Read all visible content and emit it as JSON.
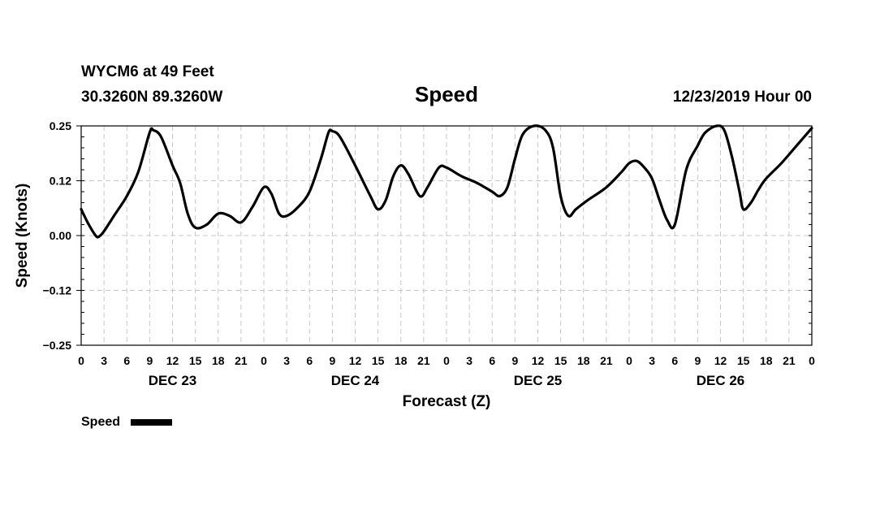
{
  "chart_data": {
    "type": "line",
    "station_line": "WYCM6 at 49 Feet",
    "coords_line": "30.3260N 89.3260W",
    "title": "Speed",
    "datetime_label": "12/23/2019 Hour 00",
    "xlabel": "Forecast (Z)",
    "ylabel": "Speed (Knots)",
    "ylim": [
      -0.25,
      0.25
    ],
    "xlim_hours": [
      0,
      96
    ],
    "yticks": [
      {
        "value": 0.25,
        "label": "0.25"
      },
      {
        "value": 0.125,
        "label": "0.12"
      },
      {
        "value": 0.0,
        "label": "0.00"
      },
      {
        "value": -0.125,
        "label": "−0.12"
      },
      {
        "value": -0.25,
        "label": "−0.25"
      }
    ],
    "xticks": [
      {
        "hour": 0,
        "label": "0"
      },
      {
        "hour": 3,
        "label": "3"
      },
      {
        "hour": 6,
        "label": "6"
      },
      {
        "hour": 9,
        "label": "9"
      },
      {
        "hour": 12,
        "label": "12"
      },
      {
        "hour": 15,
        "label": "15"
      },
      {
        "hour": 18,
        "label": "18"
      },
      {
        "hour": 21,
        "label": "21"
      },
      {
        "hour": 24,
        "label": "0"
      },
      {
        "hour": 27,
        "label": "3"
      },
      {
        "hour": 30,
        "label": "6"
      },
      {
        "hour": 33,
        "label": "9"
      },
      {
        "hour": 36,
        "label": "12"
      },
      {
        "hour": 39,
        "label": "15"
      },
      {
        "hour": 42,
        "label": "18"
      },
      {
        "hour": 45,
        "label": "21"
      },
      {
        "hour": 48,
        "label": "0"
      },
      {
        "hour": 51,
        "label": "3"
      },
      {
        "hour": 54,
        "label": "6"
      },
      {
        "hour": 57,
        "label": "9"
      },
      {
        "hour": 60,
        "label": "12"
      },
      {
        "hour": 63,
        "label": "15"
      },
      {
        "hour": 66,
        "label": "18"
      },
      {
        "hour": 69,
        "label": "21"
      },
      {
        "hour": 72,
        "label": "0"
      },
      {
        "hour": 75,
        "label": "3"
      },
      {
        "hour": 78,
        "label": "6"
      },
      {
        "hour": 81,
        "label": "9"
      },
      {
        "hour": 84,
        "label": "12"
      },
      {
        "hour": 87,
        "label": "15"
      },
      {
        "hour": 90,
        "label": "18"
      },
      {
        "hour": 93,
        "label": "21"
      },
      {
        "hour": 96,
        "label": "0"
      }
    ],
    "day_labels": [
      {
        "hour": 12,
        "label": "DEC 23"
      },
      {
        "hour": 36,
        "label": "DEC 24"
      },
      {
        "hour": 60,
        "label": "DEC 25"
      },
      {
        "hour": 84,
        "label": "DEC 26"
      }
    ],
    "grid": true,
    "legend": {
      "label": "Speed",
      "placement": "bottom-left"
    },
    "series": [
      {
        "name": "Speed",
        "color": "#000000",
        "points": [
          [
            0,
            0.06
          ],
          [
            1,
            0.025
          ],
          [
            2,
            -0.002
          ],
          [
            2.5,
            0.0
          ],
          [
            3,
            0.01
          ],
          [
            4.5,
            0.05
          ],
          [
            6,
            0.09
          ],
          [
            7.5,
            0.145
          ],
          [
            9,
            0.235
          ],
          [
            9.5,
            0.24
          ],
          [
            10.5,
            0.225
          ],
          [
            12,
            0.16
          ],
          [
            13,
            0.12
          ],
          [
            14,
            0.05
          ],
          [
            15,
            0.018
          ],
          [
            16.5,
            0.025
          ],
          [
            18,
            0.05
          ],
          [
            19.5,
            0.045
          ],
          [
            21,
            0.03
          ],
          [
            22.5,
            0.065
          ],
          [
            24,
            0.11
          ],
          [
            25,
            0.095
          ],
          [
            26,
            0.05
          ],
          [
            27,
            0.045
          ],
          [
            28.5,
            0.065
          ],
          [
            30,
            0.1
          ],
          [
            31.5,
            0.175
          ],
          [
            32.5,
            0.235
          ],
          [
            33,
            0.238
          ],
          [
            34,
            0.225
          ],
          [
            36,
            0.16
          ],
          [
            38,
            0.09
          ],
          [
            39,
            0.06
          ],
          [
            40,
            0.08
          ],
          [
            41,
            0.135
          ],
          [
            42,
            0.16
          ],
          [
            43,
            0.14
          ],
          [
            44.5,
            0.09
          ],
          [
            45.5,
            0.11
          ],
          [
            47,
            0.155
          ],
          [
            48,
            0.155
          ],
          [
            50,
            0.135
          ],
          [
            52,
            0.12
          ],
          [
            54,
            0.1
          ],
          [
            55,
            0.09
          ],
          [
            56,
            0.11
          ],
          [
            57,
            0.175
          ],
          [
            58,
            0.23
          ],
          [
            59.5,
            0.25
          ],
          [
            61,
            0.24
          ],
          [
            62,
            0.2
          ],
          [
            63,
            0.09
          ],
          [
            64,
            0.045
          ],
          [
            65,
            0.06
          ],
          [
            66.5,
            0.08
          ],
          [
            69,
            0.11
          ],
          [
            71,
            0.145
          ],
          [
            72,
            0.165
          ],
          [
            73,
            0.17
          ],
          [
            74,
            0.155
          ],
          [
            75,
            0.13
          ],
          [
            76,
            0.08
          ],
          [
            77,
            0.035
          ],
          [
            78,
            0.025
          ],
          [
            79.5,
            0.15
          ],
          [
            81,
            0.205
          ],
          [
            82,
            0.235
          ],
          [
            83.5,
            0.25
          ],
          [
            84.5,
            0.24
          ],
          [
            85.5,
            0.18
          ],
          [
            86.5,
            0.1
          ],
          [
            87,
            0.06
          ],
          [
            88,
            0.075
          ],
          [
            89,
            0.105
          ],
          [
            90,
            0.13
          ],
          [
            92,
            0.165
          ],
          [
            94,
            0.205
          ],
          [
            96,
            0.245
          ]
        ]
      }
    ]
  }
}
